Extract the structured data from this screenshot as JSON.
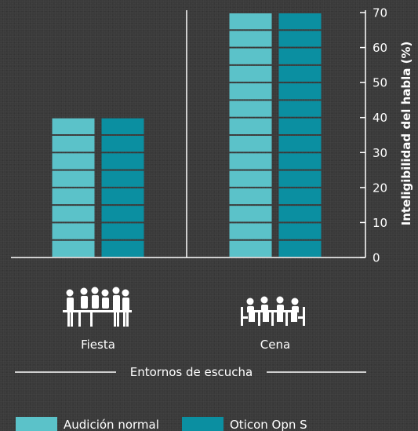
{
  "chart_data": {
    "type": "bar",
    "categories": [
      "Fiesta",
      "Cena"
    ],
    "series": [
      {
        "name": "Audición normal",
        "values": [
          40,
          70
        ],
        "color": "#5bc2c9"
      },
      {
        "name": "Oticon Opn S",
        "values": [
          40,
          70
        ],
        "color": "#0b8fa1"
      }
    ],
    "xlabel": "Entornos de escucha",
    "ylabel": "Inteligibilidad  del habla (%)",
    "ylim": [
      0,
      70
    ],
    "yticks": [
      0,
      10,
      20,
      30,
      40,
      50,
      60,
      70
    ],
    "grid": false,
    "y_axis_side": "right",
    "legend_position": "bottom",
    "category_icons": [
      "party-people-icon",
      "dinner-table-icon"
    ]
  }
}
